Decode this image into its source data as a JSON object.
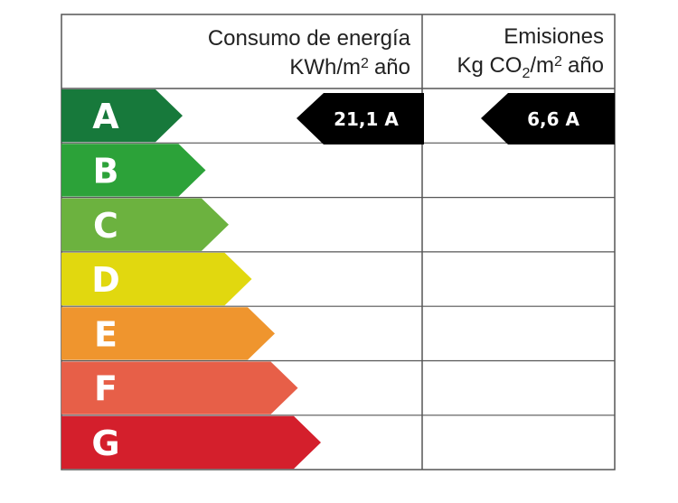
{
  "header": {
    "energy_title": "Consumo de energía",
    "energy_unit": [
      "KWh/m",
      "2",
      "año"
    ],
    "emissions_title": "Emisiones",
    "emissions_unit": [
      "Kg CO",
      "2",
      "/m",
      "2",
      "año"
    ]
  },
  "ratings": [
    {
      "letter": "A",
      "color": "#17793b"
    },
    {
      "letter": "B",
      "color": "#2ca239"
    },
    {
      "letter": "C",
      "color": "#6cb23f"
    },
    {
      "letter": "D",
      "color": "#e1d80f"
    },
    {
      "letter": "E",
      "color": "#ef952e"
    },
    {
      "letter": "F",
      "color": "#e75f48"
    },
    {
      "letter": "G",
      "color": "#d41f2c"
    }
  ],
  "energy_indicator": "21,1 A",
  "emissions_indicator": "6,6 A"
}
